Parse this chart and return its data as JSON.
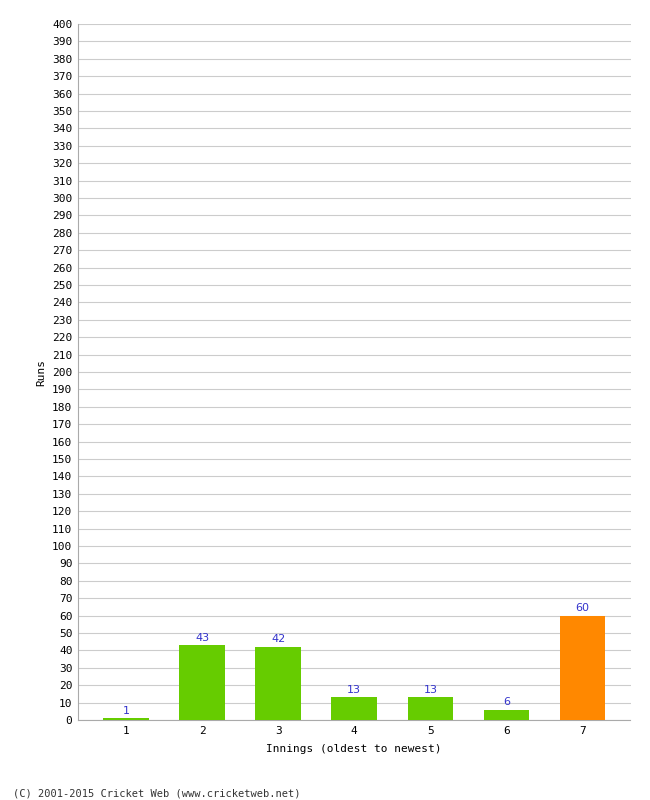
{
  "categories": [
    1,
    2,
    3,
    4,
    5,
    6,
    7
  ],
  "values": [
    1,
    43,
    42,
    13,
    13,
    6,
    60
  ],
  "bar_colors": [
    "#66cc00",
    "#66cc00",
    "#66cc00",
    "#66cc00",
    "#66cc00",
    "#66cc00",
    "#ff8800"
  ],
  "ylabel": "Runs",
  "xlabel": "Innings (oldest to newest)",
  "ylim": [
    0,
    400
  ],
  "ytick_step": 10,
  "label_color": "#3333cc",
  "grid_color": "#cccccc",
  "background_color": "#ffffff",
  "footer": "(C) 2001-2015 Cricket Web (www.cricketweb.net)",
  "tick_font_size": 8,
  "label_font_size": 8
}
